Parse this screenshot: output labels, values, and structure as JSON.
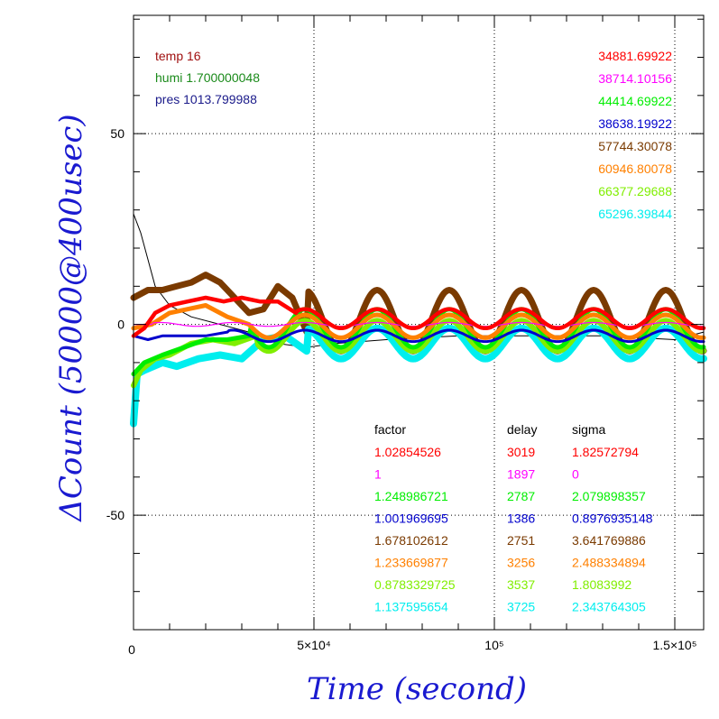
{
  "chart_data": {
    "type": "line",
    "xlabel": "Time (second)",
    "ylabel": "ΔCount (50000@400usec)",
    "xlim": [
      0,
      158000
    ],
    "ylim": [
      -80,
      81
    ],
    "grid": "dotted at x=5×10⁴, 10⁵, 1.5×10⁵ and y=-50, 0, 50",
    "x_ticks": [
      {
        "value": 0,
        "label": "0"
      },
      {
        "value": 50000,
        "label": "5×10⁴"
      },
      {
        "value": 100000,
        "label": "10⁵"
      },
      {
        "value": 150000,
        "label": "1.5×10⁵"
      }
    ],
    "y_ticks": [
      {
        "value": 50,
        "label": "50"
      },
      {
        "value": 0,
        "label": "0"
      },
      {
        "value": -50,
        "label": "-50"
      }
    ],
    "environment": [
      {
        "text": "temp 16",
        "color": "#a01010"
      },
      {
        "text": "humi 1.700000048",
        "color": "#1a8a1a"
      },
      {
        "text": "pres 1013.799988",
        "color": "#1a1a8a"
      }
    ],
    "table_headers": [
      "factor",
      "delay",
      "sigma"
    ],
    "series": [
      {
        "name": "34881.69922",
        "color": "#ff0000",
        "factor": "1.02854526",
        "delay": "3019",
        "sigma": "1.82572794",
        "offset": 1.5,
        "amp": 2.5,
        "width": 4.5,
        "early": [
          [
            0,
            -3
          ],
          [
            3000,
            -1
          ],
          [
            6000,
            3
          ],
          [
            10000,
            5
          ],
          [
            15000,
            6
          ],
          [
            20000,
            7
          ],
          [
            25000,
            6
          ],
          [
            30000,
            7
          ],
          [
            35000,
            6
          ],
          [
            40000,
            6
          ],
          [
            45000,
            3
          ]
        ]
      },
      {
        "name": "38714.10156",
        "color": "#ff00ff",
        "factor": "1",
        "delay": "1897",
        "sigma": "0",
        "offset": 0,
        "amp": 0.5,
        "width": 1.2,
        "early": [
          [
            0,
            0
          ],
          [
            5000,
            0
          ]
        ]
      },
      {
        "name": "44414.69922",
        "color": "#00ee00",
        "factor": "1.248986721",
        "delay": "2787",
        "sigma": "2.079898357",
        "offset": -1,
        "amp": 5,
        "width": 5,
        "early": [
          [
            0,
            -13
          ],
          [
            3000,
            -10
          ],
          [
            8000,
            -8
          ],
          [
            14000,
            -6
          ],
          [
            20000,
            -4
          ],
          [
            26000,
            -4
          ],
          [
            32000,
            -3
          ]
        ]
      },
      {
        "name": "38638.19922",
        "color": "#0000cc",
        "factor": "1.001969695",
        "delay": "1386",
        "sigma": "0.8976935148",
        "offset": -3,
        "amp": 1.5,
        "width": 3,
        "early": [
          [
            0,
            -3
          ],
          [
            4000,
            -4
          ],
          [
            8000,
            -3
          ],
          [
            14000,
            -3
          ],
          [
            20000,
            -3
          ],
          [
            26000,
            -2
          ]
        ]
      },
      {
        "name": "57744.30078",
        "color": "#7a3a00",
        "factor": "1.678102612",
        "delay": "2751",
        "sigma": "3.641769886",
        "offset": 1,
        "amp": 8,
        "width": 7,
        "early": [
          [
            0,
            7
          ],
          [
            4000,
            9
          ],
          [
            8000,
            9
          ],
          [
            12000,
            10
          ],
          [
            16000,
            11
          ],
          [
            20000,
            13
          ],
          [
            24000,
            11
          ],
          [
            28000,
            7
          ],
          [
            32000,
            3
          ],
          [
            36000,
            4
          ],
          [
            40000,
            10
          ],
          [
            44000,
            7
          ],
          [
            48000,
            -2
          ]
        ]
      },
      {
        "name": "60946.80078",
        "color": "#ff8000",
        "factor": "1.233669877",
        "delay": "3256",
        "sigma": "2.488334894",
        "offset": -0.5,
        "amp": 3,
        "width": 5,
        "early": [
          [
            0,
            -1
          ],
          [
            5000,
            0
          ],
          [
            10000,
            3
          ],
          [
            15000,
            4
          ],
          [
            20000,
            5
          ],
          [
            26000,
            2
          ],
          [
            32000,
            0
          ]
        ]
      },
      {
        "name": "66377.29688",
        "color": "#80ee00",
        "factor": "0.8783329725",
        "delay": "3537",
        "sigma": "1.8083992",
        "offset": -3,
        "amp": 4,
        "width": 6,
        "early": [
          [
            0,
            -16
          ],
          [
            2000,
            -12
          ],
          [
            6000,
            -9
          ],
          [
            10000,
            -8
          ],
          [
            16000,
            -5
          ],
          [
            22000,
            -4
          ],
          [
            28000,
            -5
          ],
          [
            34000,
            -3
          ]
        ]
      },
      {
        "name": "65296.39844",
        "color": "#00eeee",
        "factor": "1.137595654",
        "delay": "3725",
        "sigma": "2.343764305",
        "offset": -5,
        "amp": 4,
        "width": 8,
        "early": [
          [
            0,
            -26
          ],
          [
            1000,
            -13
          ],
          [
            3000,
            -12
          ],
          [
            8000,
            -10
          ],
          [
            12000,
            -11
          ],
          [
            18000,
            -9
          ],
          [
            24000,
            -8
          ],
          [
            30000,
            -9
          ],
          [
            36000,
            -4
          ],
          [
            42000,
            -3
          ],
          [
            48000,
            -7
          ]
        ]
      }
    ],
    "reference_line": {
      "color": "#000000",
      "points": [
        [
          0,
          29
        ],
        [
          2000,
          24
        ],
        [
          6000,
          10
        ],
        [
          10000,
          5
        ],
        [
          16000,
          2
        ],
        [
          24000,
          0
        ],
        [
          32000,
          -2
        ],
        [
          40000,
          -5
        ],
        [
          48000,
          -6
        ],
        [
          56000,
          -5
        ],
        [
          70000,
          -4
        ],
        [
          90000,
          -3
        ],
        [
          110000,
          -3
        ],
        [
          130000,
          -3
        ],
        [
          150000,
          -4
        ],
        [
          158000,
          -2
        ]
      ]
    }
  }
}
